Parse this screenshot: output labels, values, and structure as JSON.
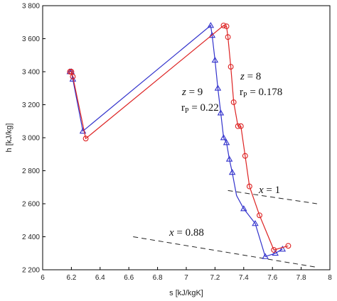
{
  "chart_data": {
    "type": "line",
    "xlabel": "s [kJ/kgK]",
    "ylabel": "h [kJ/kg]",
    "xlim": [
      6,
      8
    ],
    "ylim": [
      2200,
      3800
    ],
    "xticks": [
      6,
      6.2,
      6.4,
      6.6,
      6.8,
      7,
      7.2,
      7.4,
      7.6,
      7.8,
      8
    ],
    "xtick_labels": [
      "6",
      "6.2",
      "6.4",
      "6.6",
      "6.8",
      "7",
      "7.2",
      "7.4",
      "7.6",
      "7.8",
      "8"
    ],
    "yticks": [
      2200,
      2400,
      2600,
      2800,
      3000,
      3200,
      3400,
      3600,
      3800
    ],
    "ytick_labels": [
      "2 200",
      "2 400",
      "2 600",
      "2 800",
      "3 000",
      "3 200",
      "3 400",
      "3 600",
      "3 800"
    ],
    "grid": false,
    "series": [
      {
        "color": "#3333cc",
        "marker": "triangle",
        "x": [
          6.19,
          6.2,
          6.21,
          6.28,
          7.17,
          7.18,
          7.2,
          7.22,
          7.24,
          7.26,
          7.28,
          7.3,
          7.32,
          7.35,
          7.4,
          7.48,
          7.55,
          7.62,
          7.67
        ],
        "y": [
          3400,
          3400,
          3355,
          3040,
          3680,
          3620,
          3470,
          3300,
          3150,
          3000,
          2970,
          2870,
          2790,
          2650,
          2570,
          2480,
          2280,
          2300,
          2325
        ],
        "markers_at": [
          0,
          1,
          2,
          3,
          4,
          5,
          6,
          7,
          8,
          9,
          10,
          11,
          12,
          14,
          15,
          16,
          17,
          18
        ]
      },
      {
        "color": "#dd2222",
        "marker": "circle",
        "x": [
          6.19,
          6.2,
          6.21,
          6.3,
          7.26,
          7.28,
          7.29,
          7.31,
          7.33,
          7.36,
          7.38,
          7.41,
          7.44,
          7.51,
          7.61,
          7.71
        ],
        "y": [
          3400,
          3400,
          3370,
          2995,
          3680,
          3675,
          3610,
          3430,
          3215,
          3070,
          3070,
          2890,
          2705,
          2530,
          2320,
          2345
        ],
        "markers_at": [
          0,
          1,
          2,
          3,
          4,
          5,
          6,
          7,
          8,
          9,
          10,
          11,
          12,
          13,
          14,
          15
        ]
      }
    ],
    "reference_lines": [
      {
        "label_var": "x",
        "label_eq": " = 1",
        "x": [
          7.29,
          7.91
        ],
        "y": [
          2680,
          2600
        ]
      },
      {
        "label_var": "x",
        "label_eq": " = 0.88",
        "x": [
          6.63,
          7.91
        ],
        "y": [
          2400,
          2215
        ]
      }
    ],
    "annotations": {
      "blue_z_var": "z",
      "blue_z_val": " = 9",
      "blue_r_sym": "r",
      "blue_r_sub": "P",
      "blue_r_val": " = 0.22",
      "red_z_var": "z",
      "red_z_val": " = 8",
      "red_r_sym": "r",
      "red_r_sub": "P",
      "red_r_val": " = 0.178"
    }
  }
}
